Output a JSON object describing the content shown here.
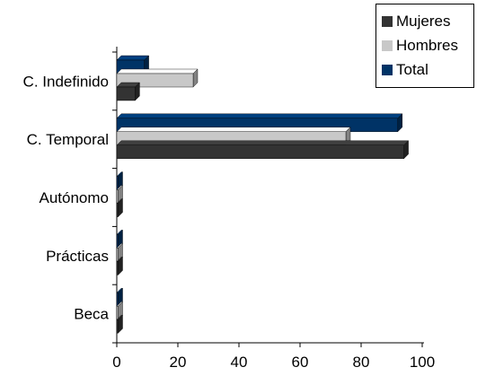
{
  "chart_data": {
    "type": "bar",
    "orientation": "horizontal",
    "style": "3d",
    "categories": [
      "C. Indefinido",
      "C. Temporal",
      "Autónomo",
      "Prácticas",
      "Beca"
    ],
    "series": [
      {
        "name": "Mujeres",
        "values": [
          6,
          94,
          0,
          0,
          0
        ],
        "color": "#333333"
      },
      {
        "name": "Hombres",
        "values": [
          25,
          75,
          0,
          0,
          0
        ],
        "color": "#c8c8c8"
      },
      {
        "name": "Total",
        "values": [
          9,
          92,
          0,
          0,
          0
        ],
        "color": "#003366"
      }
    ],
    "xlim": [
      0,
      100
    ],
    "x_ticks": [
      "0",
      "20",
      "40",
      "60",
      "80",
      "100"
    ],
    "grid": false,
    "legend_position": "top-right",
    "title": "",
    "xlabel": "",
    "ylabel": ""
  }
}
